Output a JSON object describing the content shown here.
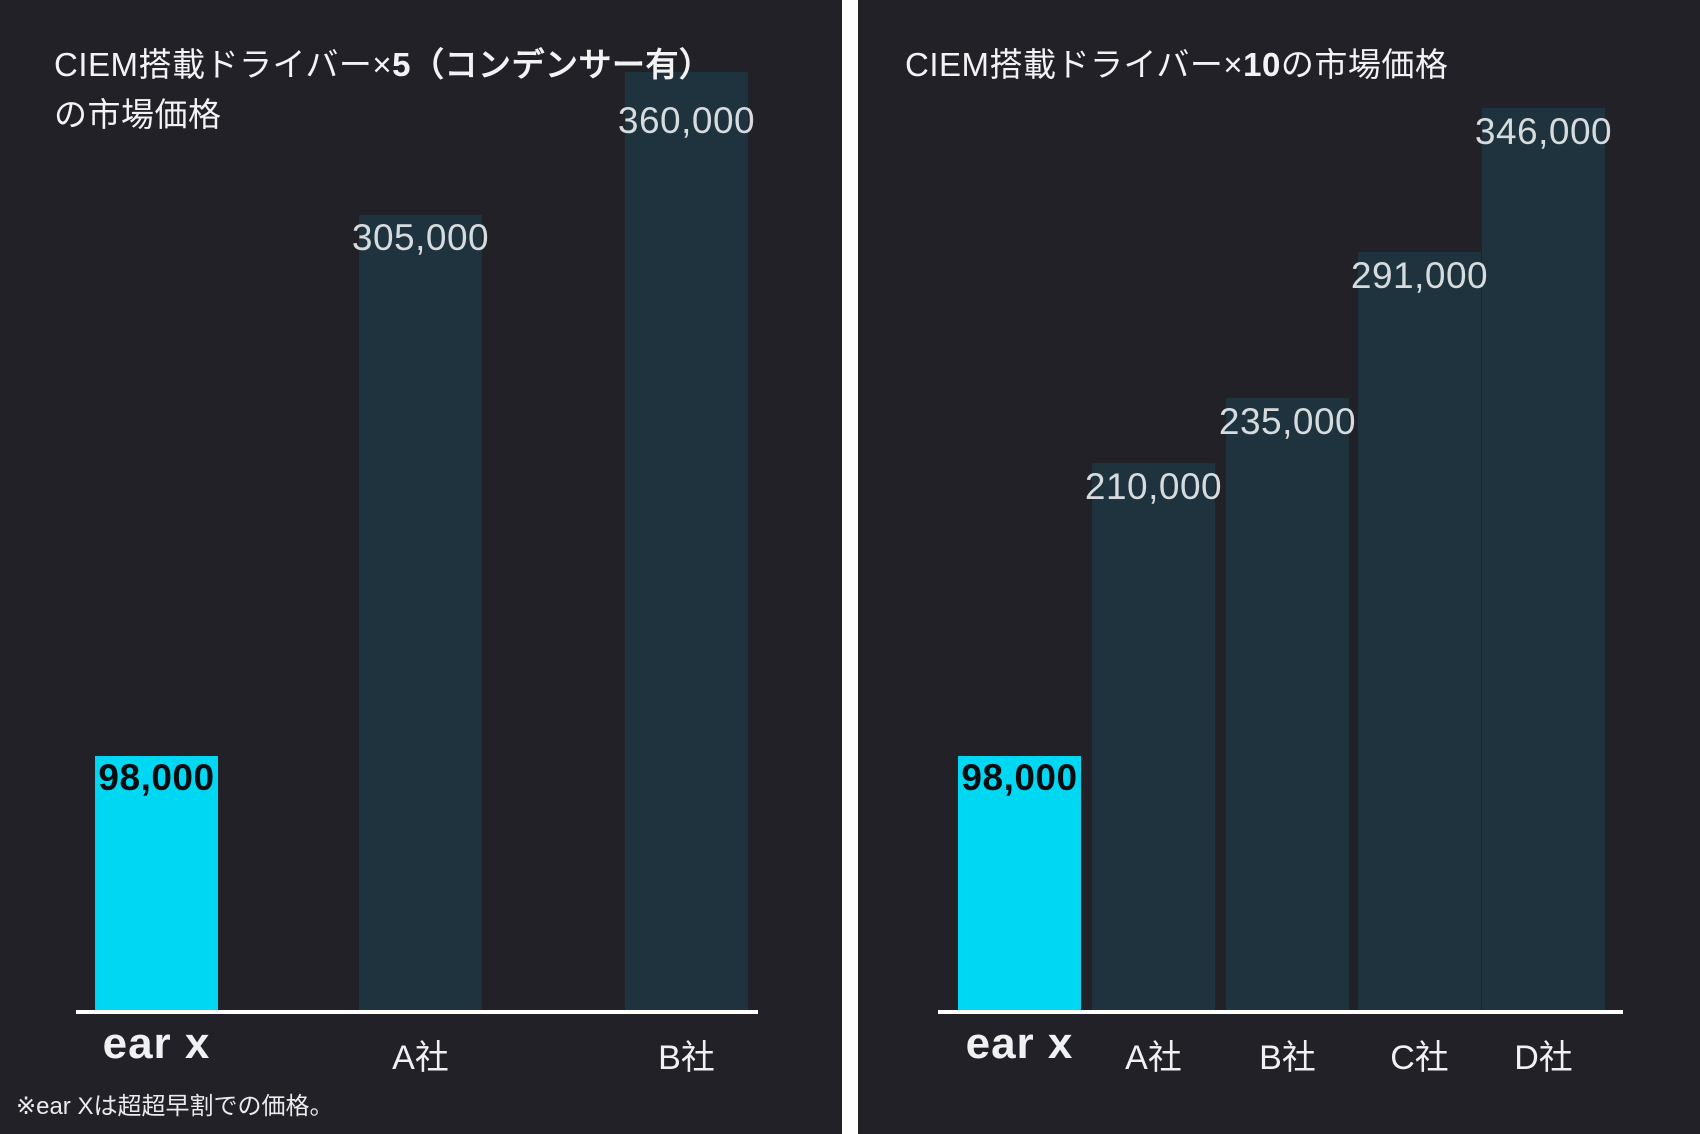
{
  "page": {
    "background": "#ffffff",
    "panel_background": "#222127",
    "divider_color": "#ffffff"
  },
  "colors": {
    "highlight_bar": "#00d7f2",
    "default_bar": "#1f333e",
    "axis_line": "#ffffff",
    "title_text": "#f2f3f4",
    "value_label": "#d6dbde",
    "highlight_value_label": "#0a0c10",
    "category_label": "#eff1f2",
    "footnote_text": "#e9ebec"
  },
  "charts": [
    {
      "title_lines": [
        {
          "segments": [
            {
              "text": "CIEM搭載ドライバー×",
              "bold": false
            },
            {
              "text": "5（コンデンサー有）",
              "bold": true
            }
          ]
        },
        {
          "segments": [
            {
              "text": "の市場価格",
              "bold": false
            }
          ]
        }
      ]
    },
    {
      "title_lines": [
        {
          "segments": [
            {
              "text": "CIEM搭載ドライバー×",
              "bold": false
            },
            {
              "text": "10",
              "bold": true
            },
            {
              "text": "の市場価格",
              "bold": false
            }
          ]
        }
      ]
    }
  ],
  "chart_data": [
    {
      "type": "bar",
      "title": "CIEM搭載ドライバー×5（コンデンサー有）の市場価格",
      "categories": [
        "ear x",
        "A社",
        "B社"
      ],
      "values": [
        98000,
        305000,
        360000
      ],
      "value_labels": [
        "98,000",
        "305,000",
        "360,000"
      ],
      "highlight_index": 0,
      "ylim": [
        0,
        387000
      ],
      "grid": false,
      "legend": false,
      "bar_colors_note": "first bar cyan highlight, others dark teal"
    },
    {
      "type": "bar",
      "title": "CIEM搭載ドライバー×10の市場価格",
      "categories": [
        "ear x",
        "A社",
        "B社",
        "C社",
        "D社"
      ],
      "values": [
        98000,
        210000,
        235000,
        291000,
        346000
      ],
      "value_labels": [
        "98,000",
        "210,000",
        "235,000",
        "291,000",
        "346,000"
      ],
      "highlight_index": 0,
      "ylim": [
        0,
        387000
      ],
      "grid": false,
      "legend": false,
      "bar_colors_note": "first bar cyan highlight, others dark teal"
    }
  ],
  "footnote": "※ear Xは超超早割での価格。"
}
